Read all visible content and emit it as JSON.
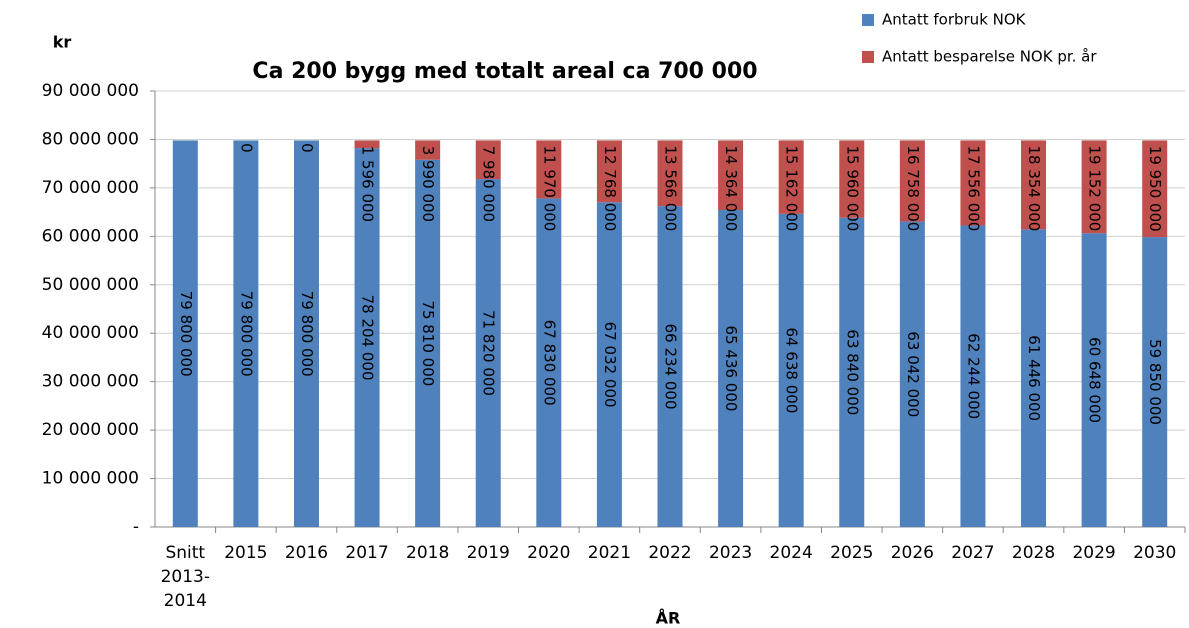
{
  "chart_data": {
    "type": "stacked_bar",
    "title": "Ca 200 bygg med totalt areal ca 700 000",
    "y_label": "kr",
    "x_label": "ÅR",
    "categories": [
      "Snitt 2013-2014",
      "2015",
      "2016",
      "2017",
      "2018",
      "2019",
      "2020",
      "2021",
      "2022",
      "2023",
      "2024",
      "2025",
      "2026",
      "2027",
      "2028",
      "2029",
      "2030"
    ],
    "series": [
      {
        "name": "Antatt forbruk NOK",
        "color": "#4f81bd",
        "values": [
          79800000,
          79800000,
          79800000,
          78204000,
          75810000,
          71820000,
          67830000,
          67032000,
          66234000,
          65436000,
          64638000,
          63840000,
          63042000,
          62244000,
          61446000,
          60648000,
          59850000
        ],
        "value_labels": [
          "79 800 000",
          "79 800 000",
          "79 800 000",
          "78 204 000",
          "75 810 000",
          "71 820 000",
          "67 830 000",
          "67 032 000",
          "66 234 000",
          "65 436 000",
          "64 638 000",
          "63 840 000",
          "63 042 000",
          "62 244 000",
          "61 446 000",
          "60 648 000",
          "59 850 000"
        ]
      },
      {
        "name": "Antatt besparelse NOK pr. år",
        "color": "#c0504d",
        "values": [
          null,
          0,
          0,
          1596000,
          3990000,
          7980000,
          11970000,
          12768000,
          13566000,
          14364000,
          15162000,
          15960000,
          16758000,
          17556000,
          18354000,
          19152000,
          19950000
        ],
        "value_labels": [
          null,
          "0",
          "0",
          "1 596 000",
          "3 990 000",
          "7 980 000",
          "11 970 000",
          "12 768 000",
          "13 566 000",
          "14 364 000",
          "15 162 000",
          "15 960 000",
          "16 758 000",
          "17 556 000",
          "18 354 000",
          "19 152 000",
          "19 950 000"
        ]
      }
    ],
    "ylim": [
      0,
      90000000
    ],
    "yticks": [
      {
        "value": 0,
        "label": "-"
      },
      {
        "value": 10000000,
        "label": "10 000 000"
      },
      {
        "value": 20000000,
        "label": "20 000 000"
      },
      {
        "value": 30000000,
        "label": "30 000 000"
      },
      {
        "value": 40000000,
        "label": "40 000 000"
      },
      {
        "value": 50000000,
        "label": "50 000 000"
      },
      {
        "value": 60000000,
        "label": "60 000 000"
      },
      {
        "value": 70000000,
        "label": "70 000 000"
      },
      {
        "value": 80000000,
        "label": "80 000 000"
      },
      {
        "value": 90000000,
        "label": "90 000 000"
      }
    ],
    "grid": true,
    "legend": "top-right"
  }
}
